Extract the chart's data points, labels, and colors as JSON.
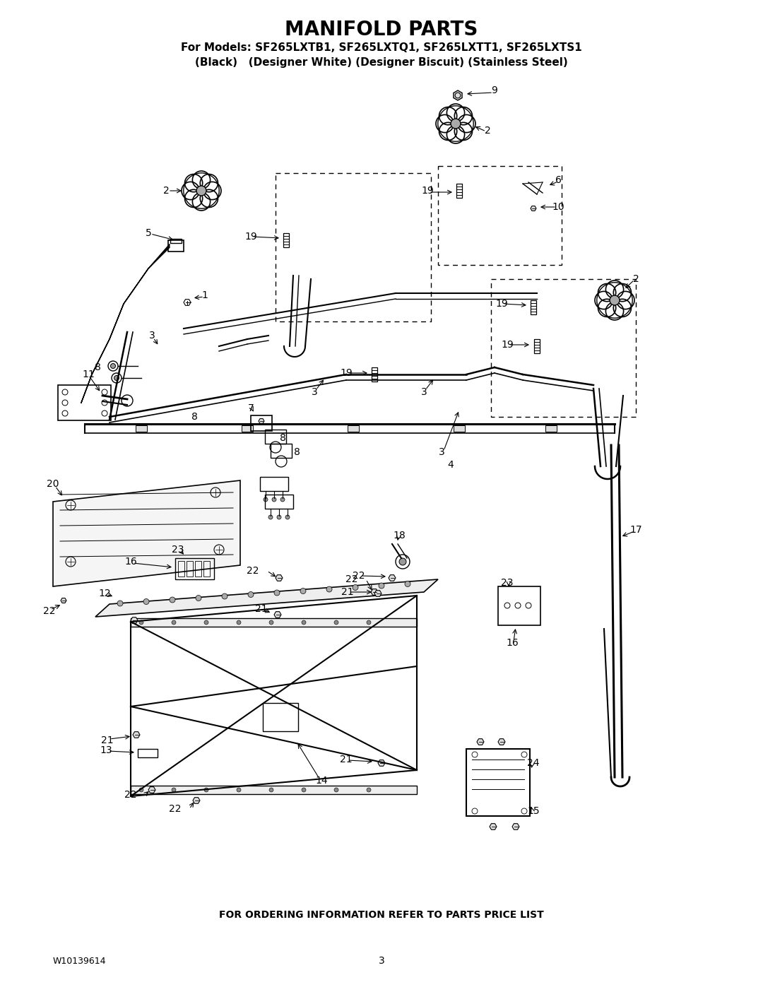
{
  "title": "MANIFOLD PARTS",
  "subtitle_line1": "For Models: SF265LXTB1, SF265LXTQ1, SF265LXTT1, SF265LXTS1",
  "subtitle_line2": "(Black)   (Designer White) (Designer Biscuit) (Stainless Steel)",
  "footer_text": "FOR ORDERING INFORMATION REFER TO PARTS PRICE LIST",
  "part_number": "W10139614",
  "page_number": "3",
  "bg_color": "#ffffff",
  "text_color": "#000000",
  "title_fontsize": 20,
  "subtitle_fontsize": 11,
  "footer_fontsize": 10,
  "fig_width": 10.8,
  "fig_height": 13.97,
  "dpi": 100
}
